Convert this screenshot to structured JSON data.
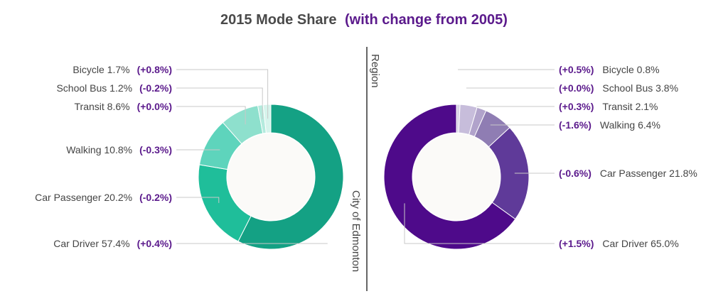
{
  "chart_data": {
    "type": "pie",
    "title": "2015 Mode Share",
    "title_suffix": "(with change from 2005)",
    "title_color": "#4a4a4a",
    "accent_color": "#5b1a8c",
    "divider_labels": {
      "city": "City of Edmonton",
      "region": "Region"
    },
    "charts": [
      {
        "name": "City of Edmonton",
        "slices": [
          {
            "label": "Car Driver",
            "value": 57.4,
            "change": "(+0.4%)",
            "color": "#14a184"
          },
          {
            "label": "Car Passenger",
            "value": 20.2,
            "change": "(-0.2%)",
            "color": "#1fbe9a"
          },
          {
            "label": "Walking",
            "value": 10.8,
            "change": "(-0.3%)",
            "color": "#5ed4bc"
          },
          {
            "label": "Transit",
            "value": 8.6,
            "change": "(+0.0%)",
            "color": "#8ee0cd"
          },
          {
            "label": "School Bus",
            "value": 1.2,
            "change": "(-0.2%)",
            "color": "#b4ebde"
          },
          {
            "label": "Bicycle",
            "value": 1.7,
            "change": "(+0.8%)",
            "color": "#d6f4ec"
          }
        ]
      },
      {
        "name": "Region",
        "slices": [
          {
            "label": "Bicycle",
            "value": 0.8,
            "change": "(+0.5%)",
            "color": "#d9d3e6"
          },
          {
            "label": "School Bus",
            "value": 3.8,
            "change": "(+0.0%)",
            "color": "#c7bddb"
          },
          {
            "label": "Transit",
            "value": 2.1,
            "change": "(+0.3%)",
            "color": "#b1a3cb"
          },
          {
            "label": "Walking",
            "value": 6.4,
            "change": "(-1.6%)",
            "color": "#8f7db3"
          },
          {
            "label": "Car Passenger",
            "value": 21.8,
            "change": "(-0.6%)",
            "color": "#5f3a99"
          },
          {
            "label": "Car Driver",
            "value": 65.0,
            "change": "(+1.5%)",
            "color": "#4e0a8a"
          }
        ]
      }
    ]
  }
}
